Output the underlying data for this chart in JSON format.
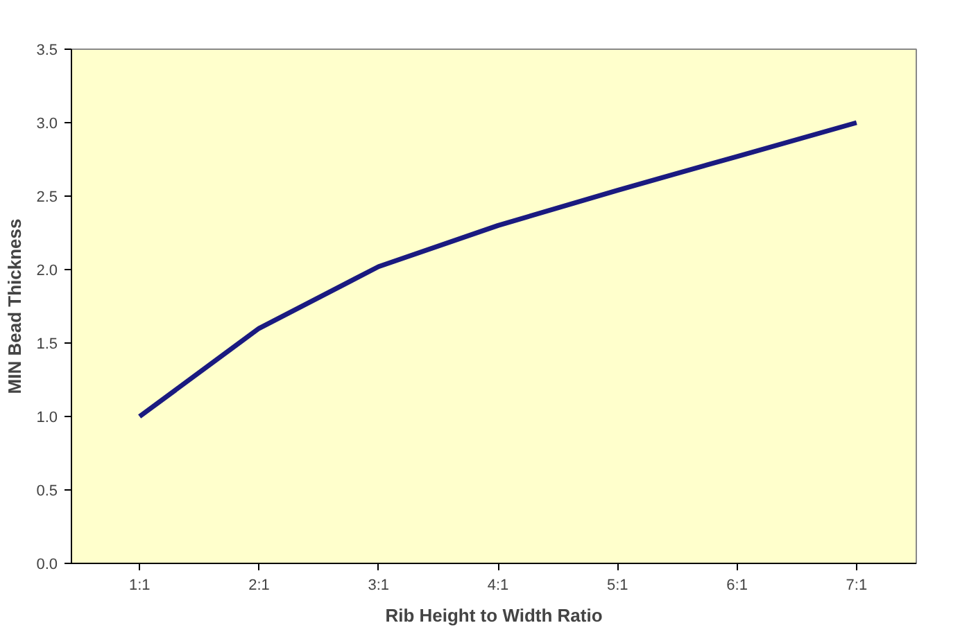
{
  "chart_data": {
    "type": "line",
    "xlabel": "Rib Height to Width Ratio",
    "ylabel": "MIN Bead Thickness",
    "categories": [
      "1:1",
      "2:1",
      "3:1",
      "4:1",
      "5:1",
      "6:1",
      "7:1"
    ],
    "series": [
      {
        "color": "#1a1a80",
        "values": [
          1.0,
          1.6,
          2.02,
          2.3,
          2.54,
          2.77,
          3.0
        ]
      }
    ],
    "ylim": [
      0,
      3.5
    ],
    "yticks": [
      {
        "value": 0,
        "label": "0.0"
      },
      {
        "value": 0.5,
        "label": "0.5"
      },
      {
        "value": 1,
        "label": "1.0"
      },
      {
        "value": 1.5,
        "label": "1.5"
      },
      {
        "value": 2,
        "label": "2.0"
      },
      {
        "value": 2.5,
        "label": "2.5"
      },
      {
        "value": 3,
        "label": "3.0"
      },
      {
        "value": 3.5,
        "label": "3.5"
      }
    ],
    "line_style": "solid"
  }
}
